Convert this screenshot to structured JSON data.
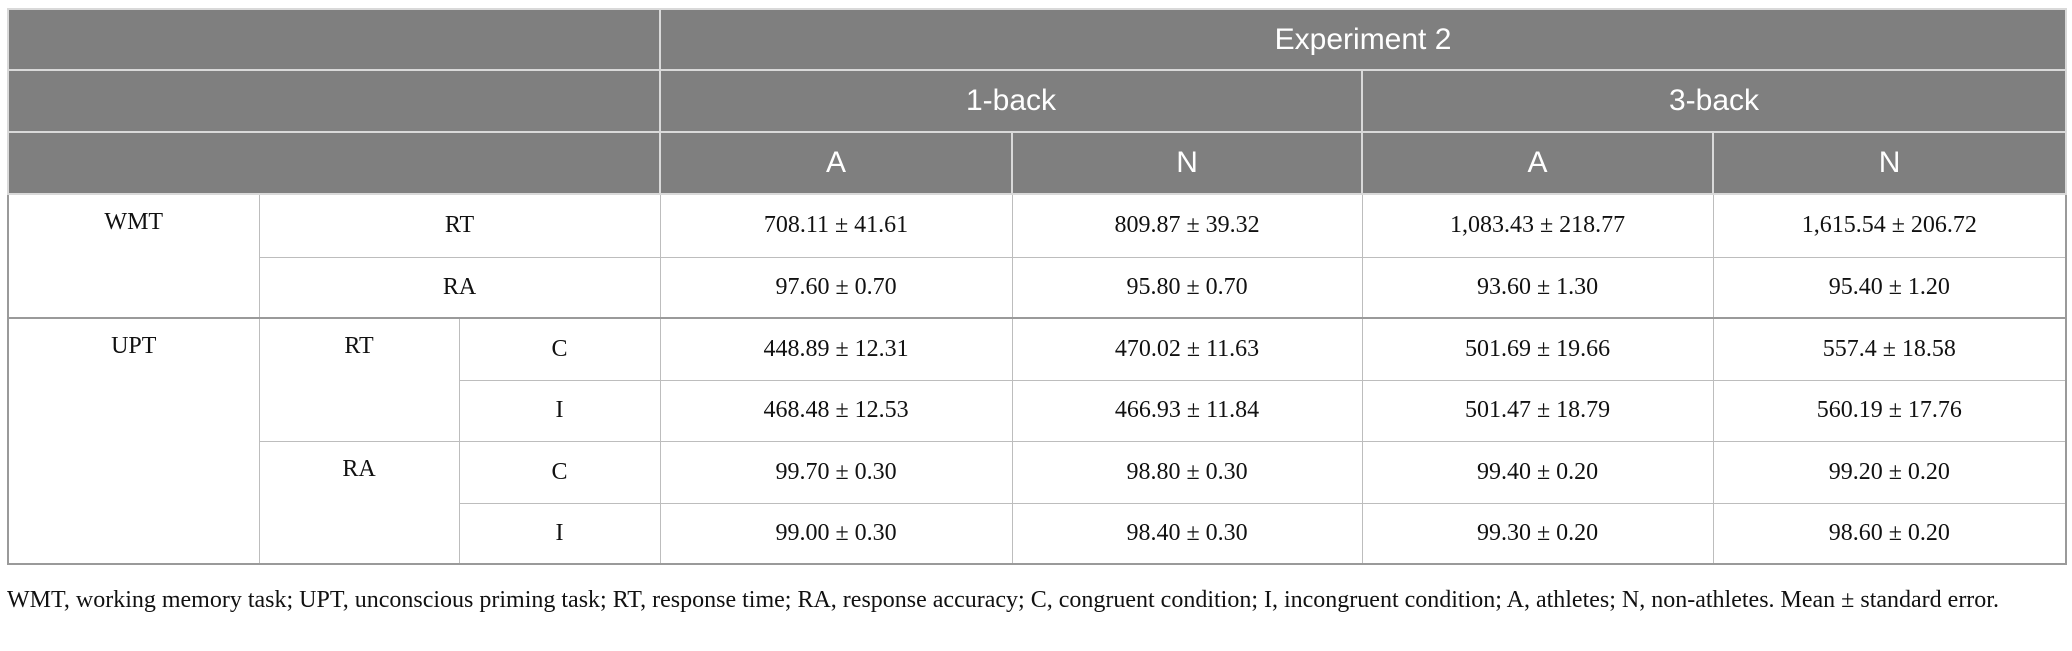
{
  "table": {
    "header": {
      "experiment": "Experiment 2",
      "tasks": [
        "1-back",
        "3-back"
      ],
      "groups": [
        "A",
        "N",
        "A",
        "N"
      ]
    },
    "wmt": {
      "label": "WMT",
      "rows": [
        {
          "label": "RT",
          "values": [
            "708.11 ± 41.61",
            "809.87 ± 39.32",
            "1,083.43 ± 218.77",
            "1,615.54 ± 206.72"
          ]
        },
        {
          "label": "RA",
          "values": [
            "97.60 ± 0.70",
            "95.80 ± 0.70",
            "93.60 ± 1.30",
            "95.40 ± 1.20"
          ]
        }
      ]
    },
    "upt": {
      "label": "UPT",
      "measures": [
        {
          "label": "RT",
          "rows": [
            {
              "label": "C",
              "values": [
                "448.89 ± 12.31",
                "470.02 ± 11.63",
                "501.69 ± 19.66",
                "557.4 ± 18.58"
              ]
            },
            {
              "label": "I",
              "values": [
                "468.48 ± 12.53",
                "466.93 ± 11.84",
                "501.47 ± 18.79",
                "560.19 ± 17.76"
              ]
            }
          ]
        },
        {
          "label": "RA",
          "rows": [
            {
              "label": "C",
              "values": [
                "99.70 ± 0.30",
                "98.80 ± 0.30",
                "99.40 ± 0.20",
                "99.20 ± 0.20"
              ]
            },
            {
              "label": "I",
              "values": [
                "99.00 ± 0.30",
                "98.40 ± 0.30",
                "99.30 ± 0.20",
                "98.60 ± 0.20"
              ]
            }
          ]
        }
      ]
    },
    "note": "WMT, working memory task; UPT, unconscious priming task; RT, response time; RA, response accuracy; C, congruent condition; I, incongruent condition; A, athletes; N, non-athletes. Mean ± standard error."
  }
}
